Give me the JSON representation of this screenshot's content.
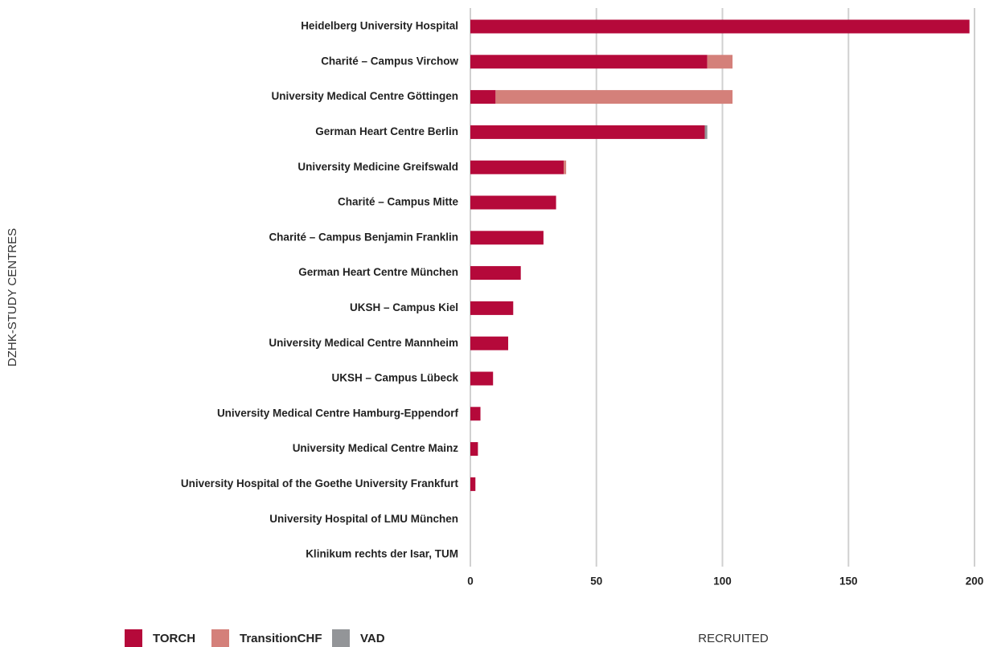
{
  "chart_data": {
    "type": "stacked_barh",
    "categories": [
      "Heidelberg University Hospital",
      "Charité – Campus Virchow",
      "University Medical Centre Göttingen",
      "German Heart Centre Berlin",
      "University Medicine Greifswald",
      "Charité – Campus Mitte",
      "Charité – Campus Benjamin Franklin",
      "German Heart Centre München",
      "UKSH – Campus Kiel",
      "University Medical Centre Mannheim",
      "UKSH – Campus Lübeck",
      "University Medical Centre Hamburg-Eppendorf",
      "University Medical Centre Mainz",
      "University Hospital of the Goethe University Frankfurt",
      "University Hospital of LMU München",
      "Klinikum rechts der Isar, TUM"
    ],
    "series": [
      {
        "name": "TORCH",
        "color": "#b5093a",
        "values": [
          198,
          94,
          10,
          93,
          37,
          34,
          29,
          20,
          17,
          15,
          9,
          4,
          3,
          2,
          0,
          0
        ]
      },
      {
        "name": "TransitionCHF",
        "color": "#d4807a",
        "values": [
          0,
          10,
          94,
          0,
          1,
          0,
          0,
          0,
          0,
          0,
          0,
          0,
          0,
          0,
          0,
          0
        ]
      },
      {
        "name": "VAD",
        "color": "#939598",
        "values": [
          0,
          0,
          0,
          1,
          0,
          0,
          0,
          0,
          0,
          0,
          0,
          0,
          0,
          0,
          0,
          0
        ]
      }
    ],
    "xlabel": "RECRUITED",
    "ylabel": "DZHK-STUDY CENTRES",
    "xlim": [
      0,
      200
    ],
    "xticks": [
      0,
      50,
      100,
      150,
      200
    ],
    "grid": true,
    "legend": "bottom-left"
  }
}
